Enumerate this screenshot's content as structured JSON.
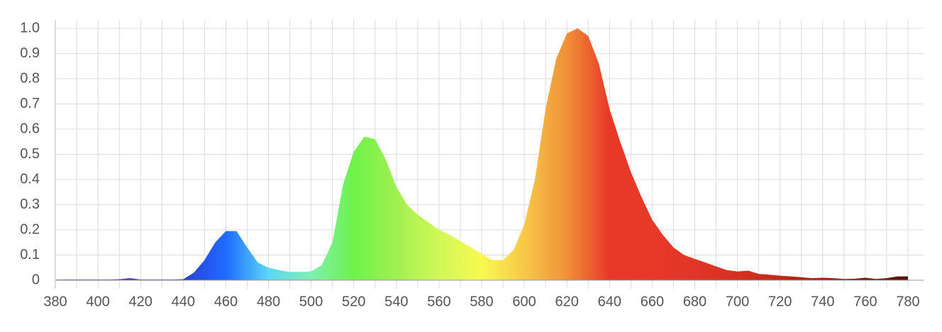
{
  "chart_data": {
    "type": "area",
    "x": [
      380,
      385,
      390,
      395,
      400,
      405,
      410,
      415,
      420,
      425,
      430,
      435,
      440,
      445,
      450,
      455,
      460,
      465,
      470,
      475,
      480,
      485,
      490,
      495,
      500,
      505,
      510,
      515,
      520,
      525,
      530,
      535,
      540,
      545,
      550,
      555,
      560,
      565,
      570,
      575,
      580,
      585,
      590,
      595,
      600,
      605,
      610,
      615,
      620,
      625,
      630,
      635,
      640,
      645,
      650,
      655,
      660,
      665,
      670,
      675,
      680,
      685,
      690,
      695,
      700,
      705,
      710,
      715,
      720,
      725,
      730,
      735,
      740,
      745,
      750,
      755,
      760,
      765,
      770,
      775,
      780
    ],
    "values": [
      0.002,
      0.003,
      0.003,
      0.003,
      0.003,
      0.003,
      0.004,
      0.008,
      0.003,
      0.003,
      0.003,
      0.003,
      0.004,
      0.03,
      0.08,
      0.15,
      0.195,
      0.195,
      0.13,
      0.07,
      0.05,
      0.04,
      0.033,
      0.033,
      0.035,
      0.06,
      0.15,
      0.38,
      0.51,
      0.57,
      0.56,
      0.48,
      0.37,
      0.3,
      0.26,
      0.23,
      0.2,
      0.18,
      0.155,
      0.13,
      0.105,
      0.08,
      0.08,
      0.12,
      0.22,
      0.4,
      0.68,
      0.88,
      0.98,
      1.0,
      0.97,
      0.86,
      0.68,
      0.55,
      0.43,
      0.33,
      0.24,
      0.18,
      0.13,
      0.1,
      0.085,
      0.07,
      0.055,
      0.04,
      0.035,
      0.038,
      0.025,
      0.022,
      0.018,
      0.015,
      0.012,
      0.008,
      0.01,
      0.008,
      0.005,
      0.006,
      0.01,
      0.005,
      0.008,
      0.015,
      0.015
    ],
    "fill_gradient": [
      "#7b2ab0",
      "#6a2ab8",
      "#4b2fc0",
      "#2a3fd8",
      "#1f6bff",
      "#5cd6f5",
      "#7fefb0",
      "#6ef24a",
      "#a0f050",
      "#d0f858",
      "#f8f850",
      "#f8c848",
      "#f09038",
      "#e83828",
      "#e83828",
      "#e03528",
      "#d83020",
      "#c02818",
      "#a02010",
      "#7a1a0a",
      "#5a1005"
    ],
    "xlim": [
      380,
      780
    ],
    "xticks": [
      380,
      400,
      420,
      440,
      460,
      480,
      500,
      520,
      540,
      560,
      580,
      600,
      620,
      640,
      660,
      680,
      700,
      720,
      740,
      760,
      780
    ],
    "ylim": [
      0,
      1.0
    ],
    "yticks": [
      0,
      {
        "value": 0.1,
        "label": "0.1"
      },
      {
        "value": 0.2,
        "label": "0.2"
      },
      {
        "value": 0.3,
        "label": "0.3"
      },
      {
        "value": 0.4,
        "label": "0.4"
      },
      {
        "value": 0.5,
        "label": "0.5"
      },
      {
        "value": 0.6,
        "label": "0.6"
      },
      {
        "value": 0.7,
        "label": "0.7"
      },
      {
        "value": 0.8,
        "label": "0.8"
      },
      {
        "value": 0.9,
        "label": "0.9"
      },
      {
        "value": 1.0,
        "label": "1.0"
      }
    ],
    "grid": true
  }
}
